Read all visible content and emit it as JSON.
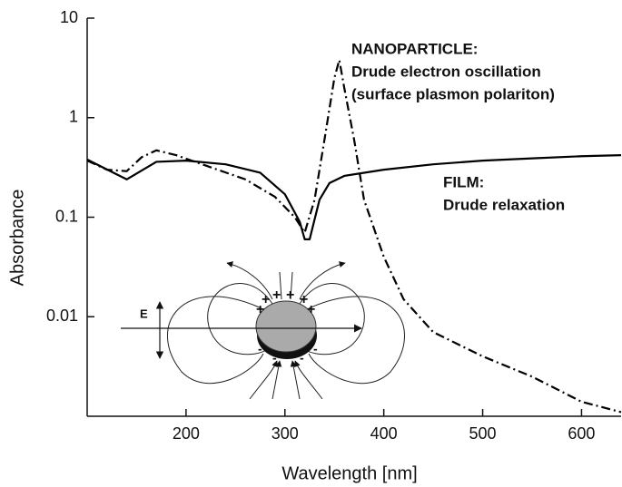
{
  "chart_data": {
    "type": "line",
    "xlabel": "Wavelength [nm]",
    "ylabel": "Absorbance",
    "xlim": [
      100,
      640
    ],
    "xticks": [
      200,
      300,
      400,
      500,
      600
    ],
    "ylim": [
      0.001,
      10
    ],
    "yticks": [
      0.01,
      0.1,
      1,
      10
    ],
    "log_y": true,
    "series": [
      {
        "color": "#000000",
        "style": "solid",
        "x": [
          100,
          140,
          170,
          200,
          240,
          275,
          300,
          315,
          320,
          325,
          335,
          345,
          360,
          400,
          450,
          500,
          550,
          600,
          640
        ],
        "values": [
          0.38,
          0.24,
          0.36,
          0.37,
          0.34,
          0.28,
          0.17,
          0.09,
          0.06,
          0.06,
          0.15,
          0.22,
          0.26,
          0.3,
          0.34,
          0.37,
          0.39,
          0.41,
          0.42
        ]
      },
      {
        "color": "#000000",
        "style": "dashdot",
        "x": [
          100,
          120,
          140,
          155,
          170,
          190,
          220,
          260,
          290,
          310,
          320,
          330,
          340,
          350,
          355,
          360,
          370,
          380,
          400,
          420,
          450,
          500,
          550,
          600,
          640
        ],
        "values": [
          0.37,
          0.3,
          0.29,
          0.4,
          0.47,
          0.42,
          0.33,
          0.24,
          0.16,
          0.1,
          0.07,
          0.15,
          0.6,
          2.5,
          3.8,
          2.0,
          0.6,
          0.15,
          0.04,
          0.015,
          0.007,
          0.004,
          0.0025,
          0.0014,
          0.0011
        ]
      }
    ],
    "annotations": [
      "NANOPARTICLE:",
      "Drude electron oscillation",
      "(surface plasmon polariton)",
      "FILM:",
      "Drude relaxation",
      "E"
    ]
  }
}
